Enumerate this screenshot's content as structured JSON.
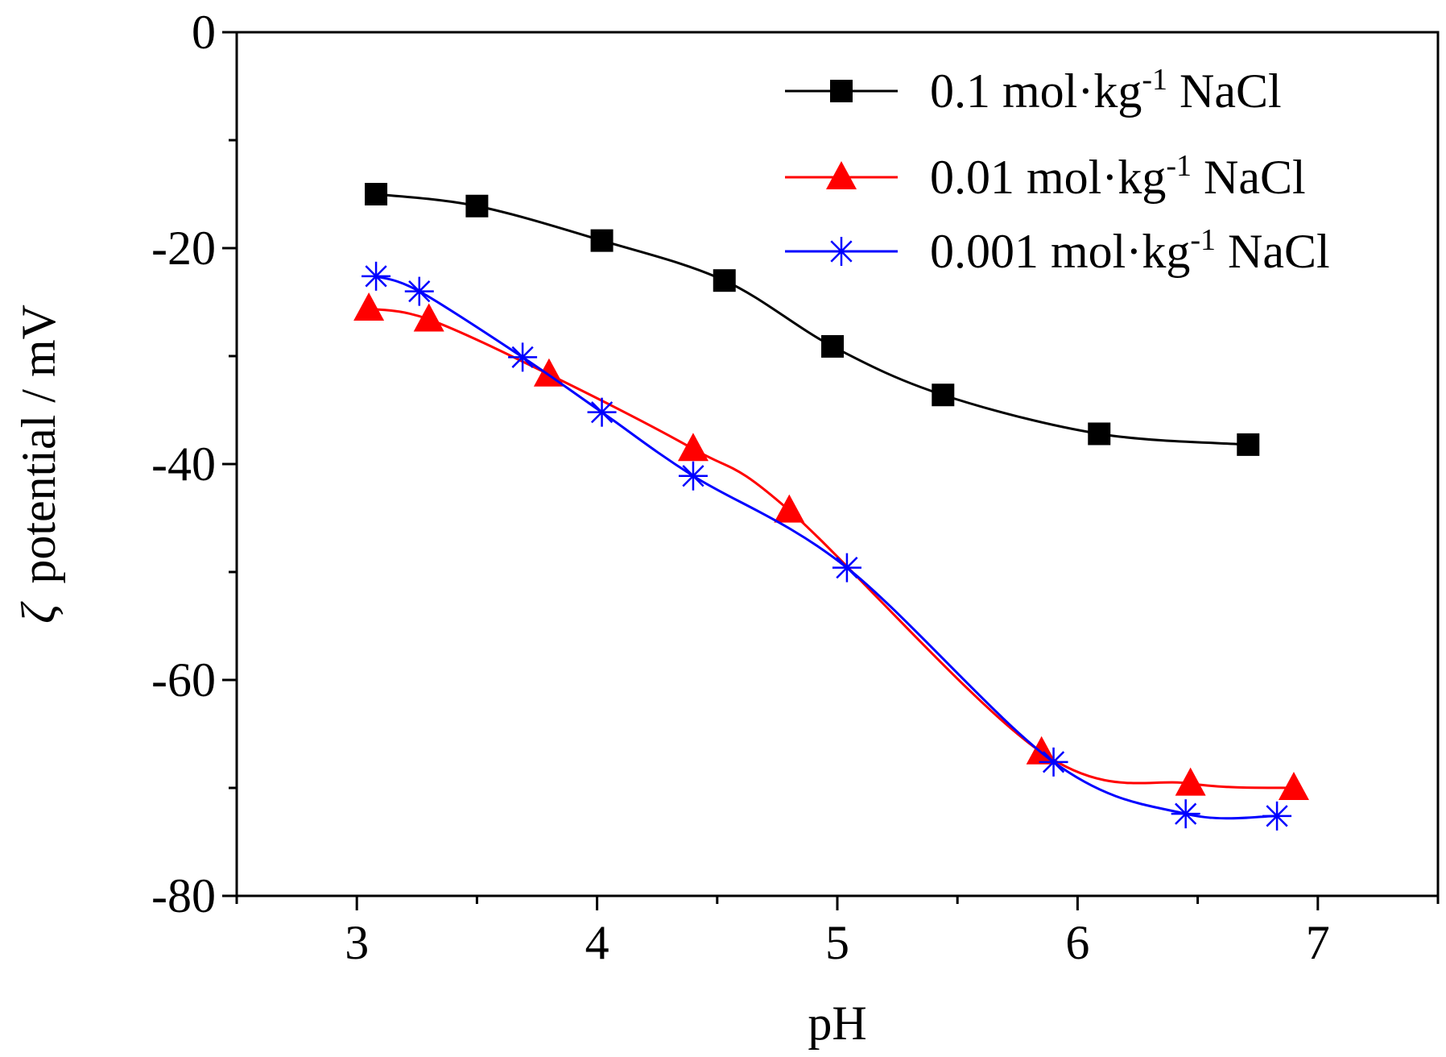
{
  "chart_data": {
    "type": "line",
    "xlabel": "pH",
    "ylabel_symbol": "ζ",
    "ylabel_text": "potential / mV",
    "xlim": [
      2.5,
      7.5
    ],
    "ylim": [
      -80,
      0
    ],
    "xticks": [
      3,
      4,
      5,
      6,
      7
    ],
    "yticks": [
      0,
      -20,
      -40,
      -60,
      -80
    ],
    "legend_position": "top-right",
    "series": [
      {
        "name_prefix": "0.1 mol·kg",
        "name_sup": "-1",
        "name_suffix": " NaCl",
        "color": "#000000",
        "marker": "square",
        "points": [
          [
            3.08,
            -15.0
          ],
          [
            3.5,
            -16.1
          ],
          [
            4.02,
            -19.3
          ],
          [
            4.53,
            -23.0
          ],
          [
            4.98,
            -29.1
          ],
          [
            5.44,
            -33.6
          ],
          [
            6.09,
            -37.2
          ],
          [
            6.71,
            -38.2
          ]
        ]
      },
      {
        "name_prefix": "0.01 mol·kg",
        "name_sup": "-1",
        "name_suffix": " NaCl",
        "color": "#ff0000",
        "marker": "triangle",
        "points": [
          [
            3.05,
            -25.6
          ],
          [
            3.3,
            -26.6
          ],
          [
            3.8,
            -31.7
          ],
          [
            4.4,
            -38.6
          ],
          [
            4.8,
            -44.3
          ],
          [
            5.85,
            -66.7
          ],
          [
            6.47,
            -69.6
          ],
          [
            6.9,
            -70.0
          ]
        ]
      },
      {
        "name_prefix": "0.001 mol·kg",
        "name_sup": "-1",
        "name_suffix": " NaCl",
        "color": "#0000ff",
        "marker": "asterisk",
        "points": [
          [
            3.08,
            -22.6
          ],
          [
            3.26,
            -24.0
          ],
          [
            3.69,
            -30.1
          ],
          [
            4.02,
            -35.2
          ],
          [
            4.4,
            -41.1
          ],
          [
            5.04,
            -49.6
          ],
          [
            5.9,
            -67.6
          ],
          [
            6.45,
            -72.4
          ],
          [
            6.83,
            -72.6
          ]
        ]
      }
    ]
  }
}
